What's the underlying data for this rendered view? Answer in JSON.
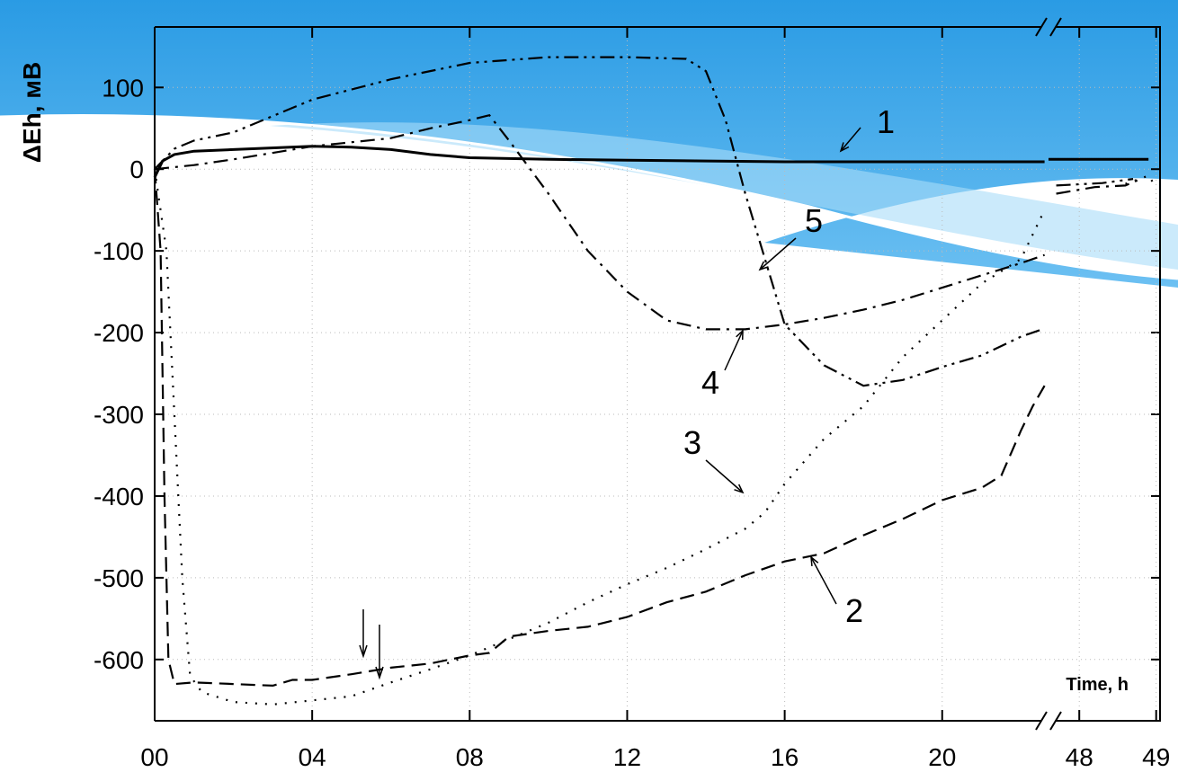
{
  "chart_data": {
    "type": "line",
    "y_label": "ΔEh, мВ",
    "x_label": "Time, h",
    "xlim": [
      0,
      49.05
    ],
    "xbreak": [
      22.7,
      47.6
    ],
    "ylim": [
      -675,
      174
    ],
    "xticks": [
      {
        "value": 0,
        "label": "00"
      },
      {
        "value": 4,
        "label": "04"
      },
      {
        "value": 8,
        "label": "08"
      },
      12,
      16,
      20,
      48,
      49
    ],
    "yticks": [
      100,
      0,
      -100,
      -200,
      -300,
      -400,
      -500,
      -600
    ],
    "grid": true,
    "series": [
      {
        "name": "1",
        "color": "#000000",
        "dash": "solid",
        "x": [
          0,
          0.2,
          0.5,
          1,
          2,
          4,
          5,
          6,
          7,
          8,
          10,
          12,
          14,
          16,
          18,
          20,
          22,
          22.6,
          null,
          47.6,
          48.9
        ],
        "values": [
          -10,
          10,
          18,
          22,
          24,
          28,
          27,
          24,
          18,
          14,
          12,
          11,
          10,
          9,
          9,
          9,
          9,
          9,
          null,
          12,
          12
        ]
      },
      {
        "name": "2",
        "color": "#000000",
        "dash": "dash",
        "x": [
          0,
          0.15,
          0.25,
          0.35,
          0.5,
          1,
          2,
          3,
          3.5,
          4,
          5,
          6,
          7,
          8,
          8.5,
          9,
          10,
          11,
          12,
          13,
          14,
          15,
          16,
          17,
          18,
          19,
          20,
          21,
          21.5,
          22,
          22.3,
          22.6
        ],
        "values": [
          0,
          -100,
          -400,
          -600,
          -630,
          -628,
          -630,
          -632,
          -625,
          -625,
          -618,
          -610,
          -605,
          -595,
          -592,
          -572,
          -565,
          -560,
          -548,
          -530,
          -517,
          -497,
          -480,
          -470,
          -448,
          -428,
          -405,
          -390,
          -375,
          -320,
          -290,
          -265
        ]
      },
      {
        "name": "3",
        "color": "#000000",
        "dash": "dot",
        "x": [
          0,
          0.3,
          0.5,
          0.7,
          0.9,
          1.2,
          2,
          3,
          4,
          5,
          6,
          7,
          8,
          9,
          10,
          11,
          12,
          13,
          14,
          15,
          15.5,
          16,
          17,
          18,
          19,
          20,
          21,
          22,
          22.6,
          null,
          48.6,
          48.9,
          49.0
        ],
        "values": [
          0,
          -100,
          -300,
          -500,
          -620,
          -640,
          -652,
          -655,
          -650,
          -645,
          -628,
          -612,
          -595,
          -575,
          -555,
          -530,
          -508,
          -488,
          -465,
          -440,
          -420,
          -385,
          -330,
          -290,
          -230,
          -185,
          -140,
          -110,
          -50,
          null,
          -18,
          -8,
          -22
        ]
      },
      {
        "name": "4",
        "color": "#000000",
        "dash": "dashdot",
        "x": [
          0,
          1,
          2,
          4,
          6,
          7,
          8,
          8.5,
          9,
          10,
          11,
          12,
          13,
          14,
          15,
          16,
          17,
          18,
          19,
          20,
          21,
          22,
          22.6,
          null,
          47.7,
          48.2,
          48.6,
          48.8
        ],
        "values": [
          0,
          5,
          12,
          28,
          38,
          50,
          60,
          66,
          35,
          -30,
          -100,
          -150,
          -185,
          -196,
          -196,
          -190,
          -182,
          -172,
          -160,
          -145,
          -130,
          -115,
          -105,
          null,
          -30,
          -22,
          -20,
          -12
        ]
      },
      {
        "name": "5",
        "color": "#000000",
        "dash": "dashdotdot",
        "x": [
          0,
          0.5,
          1,
          2,
          3,
          4,
          6,
          8,
          10,
          12,
          13.5,
          14,
          14.5,
          15,
          15.5,
          16,
          17,
          18,
          19,
          20,
          21,
          22,
          22.6,
          null,
          47.7,
          48.3,
          48.7
        ],
        "values": [
          0,
          25,
          35,
          45,
          65,
          85,
          110,
          130,
          137,
          137,
          135,
          120,
          60,
          -30,
          -110,
          -190,
          -240,
          -265,
          -258,
          -242,
          -228,
          -205,
          -195,
          null,
          -20,
          -17,
          -12
        ]
      }
    ]
  }
}
